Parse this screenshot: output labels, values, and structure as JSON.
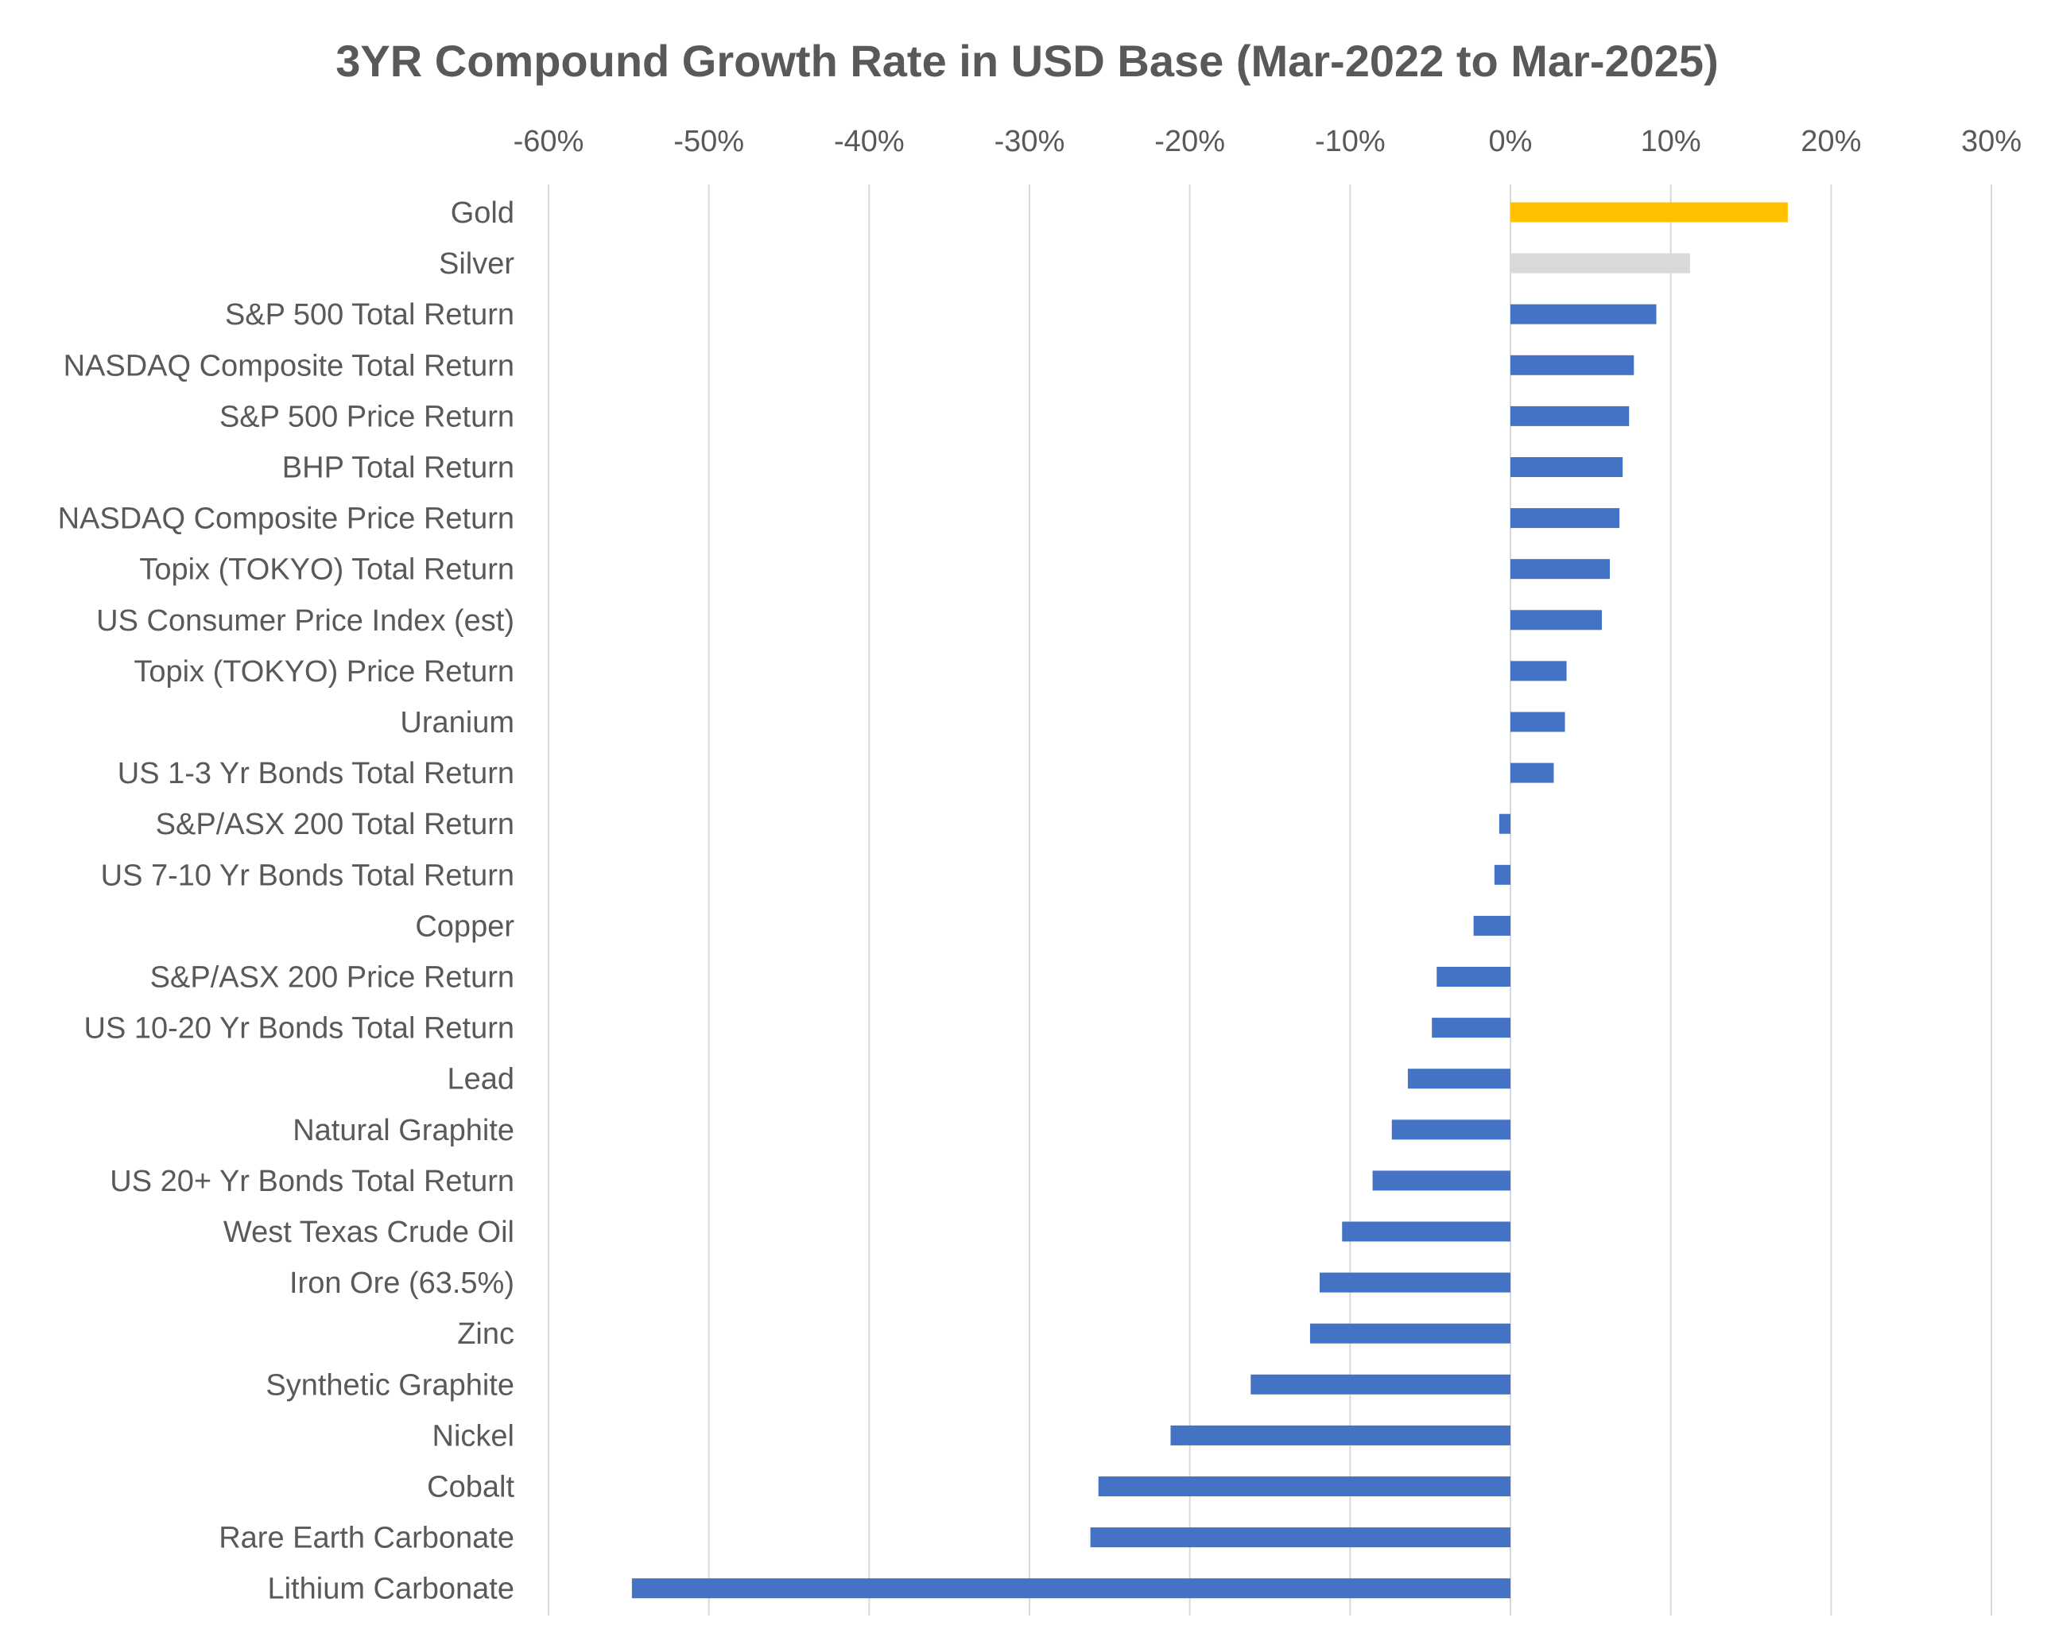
{
  "chart_data": {
    "type": "bar",
    "orientation": "horizontal",
    "title": "3YR Compound Growth Rate in USD Base (Mar-2022 to Mar-2025)",
    "xlabel": "",
    "ylabel": "",
    "xlim": [
      -60,
      30
    ],
    "x_ticks": [
      -60,
      -50,
      -40,
      -30,
      -20,
      -10,
      0,
      10,
      20,
      30
    ],
    "x_tick_labels": [
      "-60%",
      "-50%",
      "-40%",
      "-30%",
      "-20%",
      "-10%",
      "0%",
      "10%",
      "20%",
      "30%"
    ],
    "axis_position": "top",
    "grid": true,
    "legend": "none",
    "colors": {
      "default": "#4472c4",
      "gold": "#ffc000",
      "silver": "#d9d9d9",
      "grid": "#d9d9d9",
      "text": "#595959"
    },
    "categories": [
      "Gold",
      "Silver",
      "S&P 500 Total Return",
      "NASDAQ Composite Total Return",
      "S&P 500 Price Return",
      "BHP Total Return",
      "NASDAQ Composite Price Return",
      "Topix (TOKYO) Total Return",
      "US Consumer Price Index (est)",
      "Topix (TOKYO) Price Return",
      "Uranium",
      "US 1-3 Yr Bonds Total Return",
      "S&P/ASX 200 Total Return",
      "US 7-10 Yr Bonds Total Return",
      "Copper",
      "S&P/ASX 200 Price Return",
      "US 10-20 Yr Bonds Total Return",
      "Lead",
      "Natural Graphite",
      "US 20+ Yr Bonds Total Return",
      "West Texas Crude Oil",
      "Iron Ore (63.5%)",
      "Zinc",
      "Synthetic Graphite",
      "Nickel",
      "Cobalt",
      "Rare Earth Carbonate",
      "Lithium Carbonate"
    ],
    "values": [
      17.3,
      11.2,
      9.1,
      7.7,
      7.4,
      7.0,
      6.8,
      6.2,
      5.7,
      3.5,
      3.4,
      2.7,
      -0.7,
      -1.0,
      -2.3,
      -4.6,
      -4.9,
      -6.4,
      -7.4,
      -8.6,
      -10.5,
      -11.9,
      -12.5,
      -16.2,
      -21.2,
      -25.7,
      -26.2,
      -54.8
    ],
    "bar_colors": [
      "#ffc000",
      "#d9d9d9"
    ]
  }
}
